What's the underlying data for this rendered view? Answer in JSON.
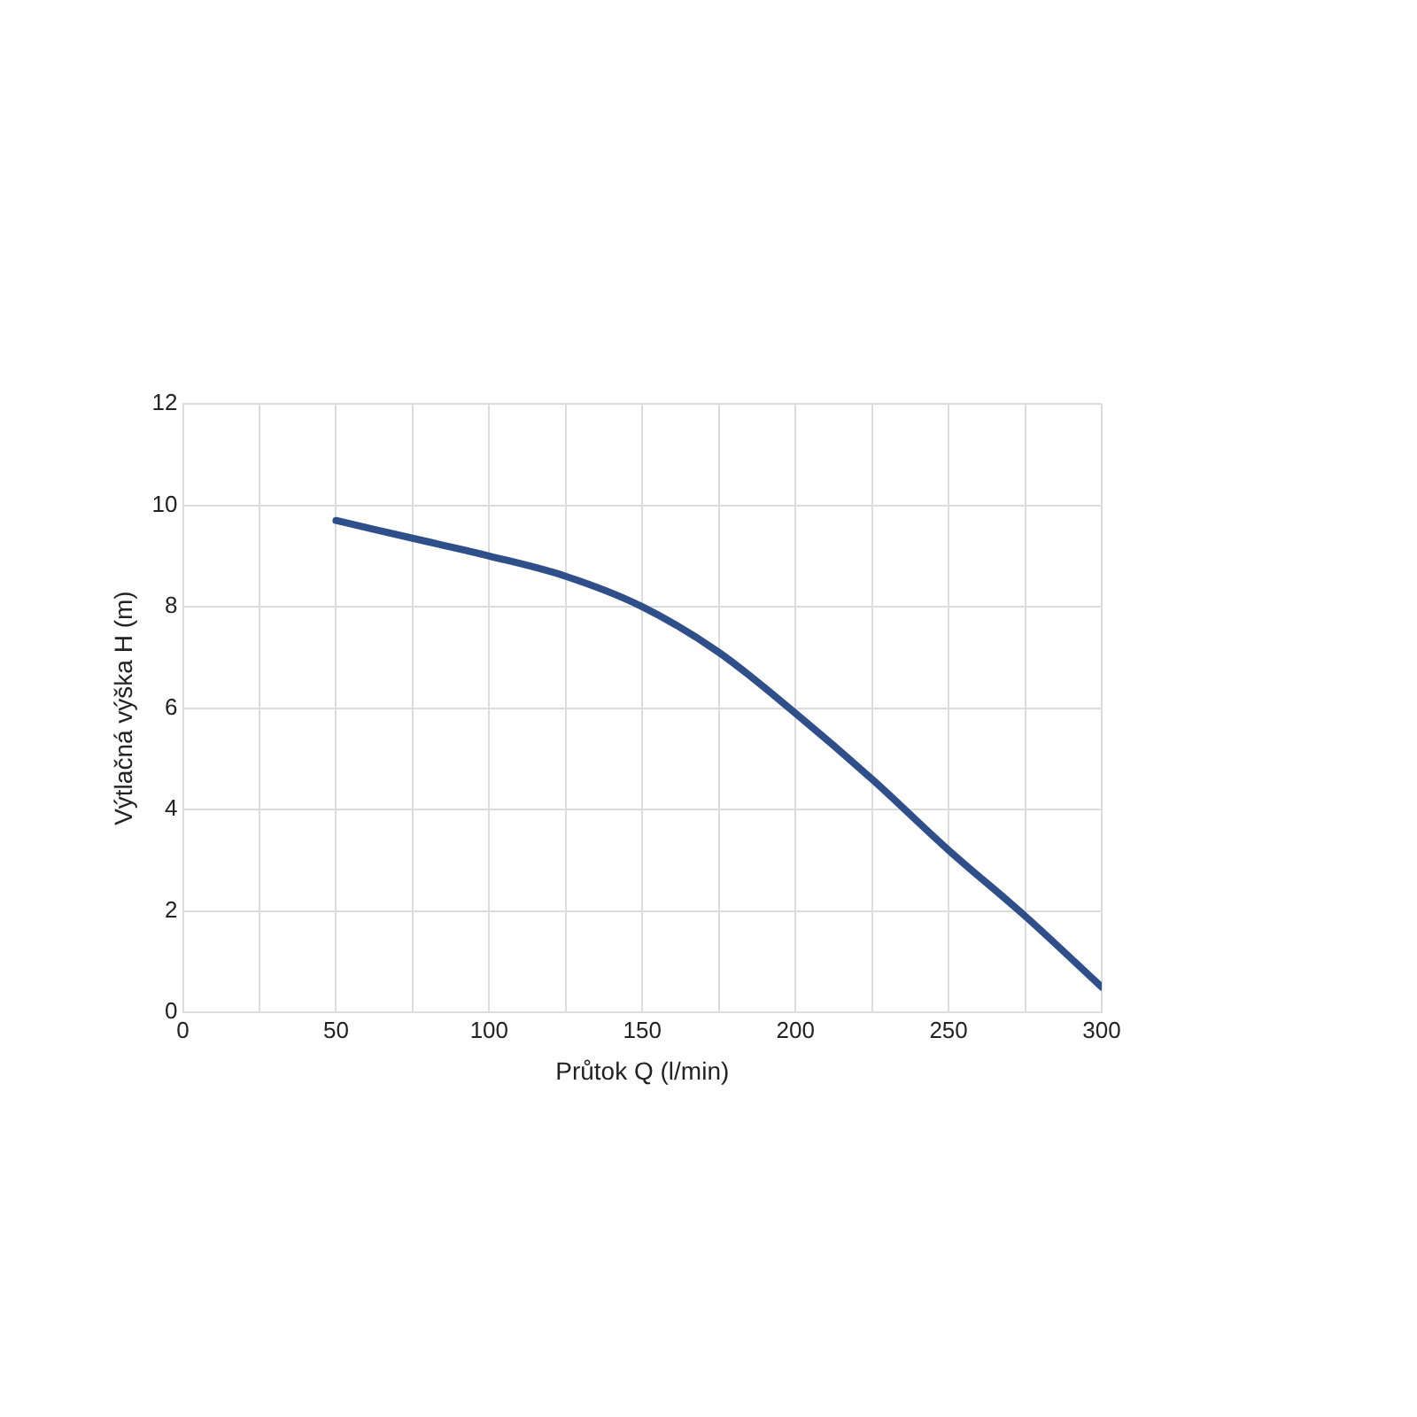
{
  "chart_data": {
    "type": "line",
    "xlabel": "Průtok Q (l/min)",
    "ylabel": "Výtlačná výška H (m)",
    "x": [
      50,
      75,
      100,
      125,
      150,
      175,
      200,
      225,
      250,
      275,
      300
    ],
    "series": [
      {
        "color": "#2f4f8a",
        "values": [
          9.7,
          9.35,
          9.0,
          8.6,
          8.0,
          7.1,
          5.9,
          4.6,
          3.2,
          1.9,
          0.5
        ]
      }
    ],
    "xlim": [
      0,
      300
    ],
    "xticks": [
      0,
      {
        "value": 25,
        "label": null
      },
      50,
      {
        "value": 75,
        "label": null
      },
      100,
      {
        "value": 125,
        "label": null
      },
      150,
      {
        "value": 175,
        "label": null
      },
      200,
      {
        "value": 225,
        "label": null
      },
      250,
      {
        "value": 275,
        "label": null
      },
      300
    ],
    "ylim": [
      0,
      12
    ],
    "yticks": [
      0,
      2,
      4,
      6,
      8,
      10,
      12
    ],
    "grid": true,
    "legend": false,
    "marker": "none",
    "line_style": "solid"
  }
}
